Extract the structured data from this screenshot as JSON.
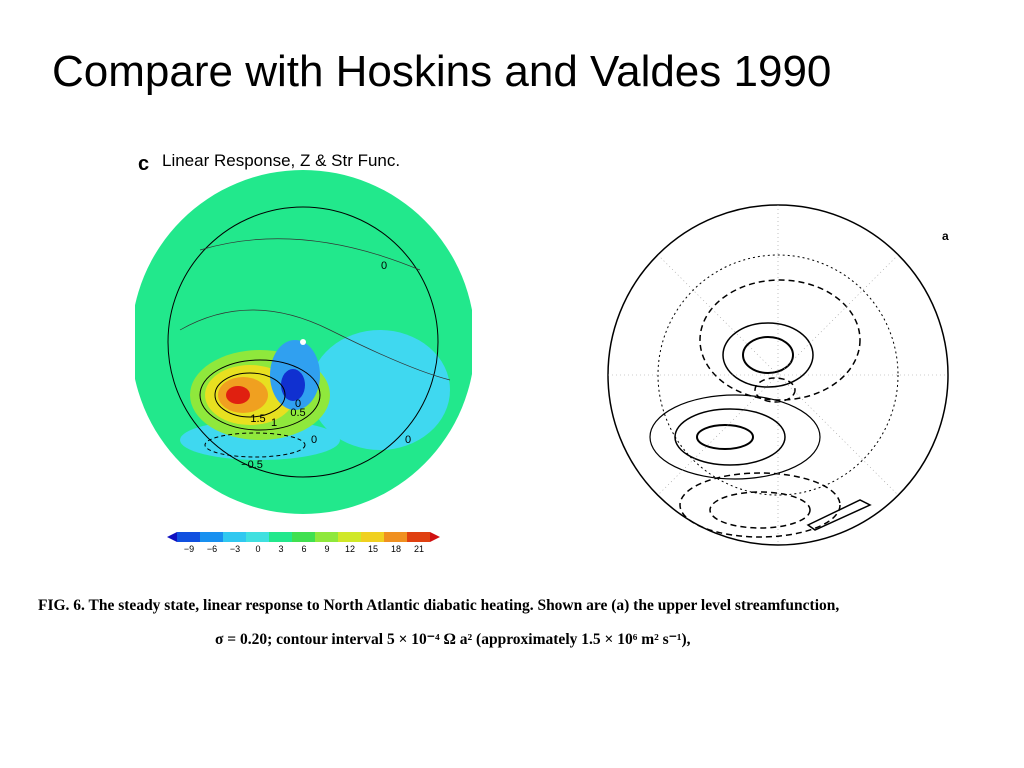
{
  "title": "Compare with Hoskins and Valdes 1990",
  "left_figure": {
    "label": "c",
    "title": "Linear Response, Z & Str Func.",
    "contour_labels": [
      "0",
      "1.5",
      "1",
      "0.5",
      "0",
      "0",
      "0",
      "−0.5"
    ],
    "colorbar_ticks": [
      "−9",
      "−6",
      "−3",
      "0",
      "3",
      "6",
      "9",
      "12",
      "15",
      "18",
      "21"
    ]
  },
  "right_figure": {
    "label": "a"
  },
  "caption": [
    "FIG. 6. The steady state, linear response to North Atlantic diabatic heating. Shown are (a) the upper level streamfunction,",
    "σ = 0.20; contour interval 5 × 10⁻⁴ Ω a² (approximately 1.5 × 10⁶ m² s⁻¹),"
  ]
}
